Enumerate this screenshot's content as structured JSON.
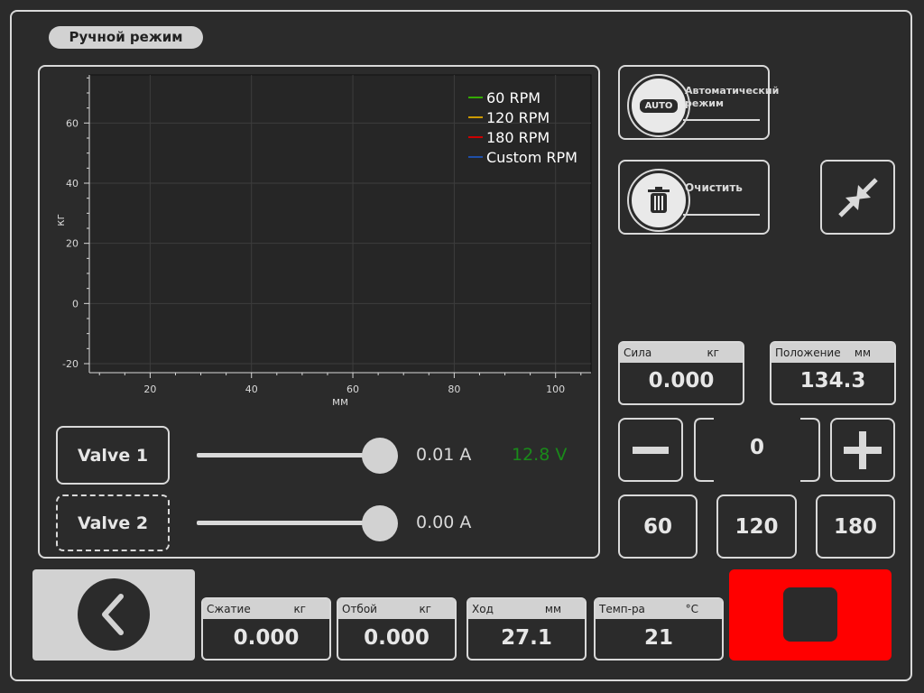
{
  "header": {
    "mode_label": "Ручной режим"
  },
  "chart_data": {
    "type": "line",
    "xlabel": "мм",
    "ylabel": "кг",
    "xlim": [
      8,
      107
    ],
    "ylim": [
      -23,
      76
    ],
    "x_ticks": [
      20,
      40,
      60,
      80,
      100
    ],
    "y_ticks": [
      -20,
      0,
      20,
      40,
      60
    ],
    "grid": true,
    "legend_position": "top-right",
    "series": [
      {
        "name": "60 RPM",
        "color": "#33aa00",
        "x": [],
        "y": []
      },
      {
        "name": "120 RPM",
        "color": "#cc9900",
        "x": [],
        "y": []
      },
      {
        "name": "180 RPM",
        "color": "#cc0000",
        "x": [],
        "y": []
      },
      {
        "name": "Custom RPM",
        "color": "#1f4fa8",
        "x": [],
        "y": []
      }
    ]
  },
  "valves": [
    {
      "label": "Valve 1",
      "level": 1.0,
      "current": "0.01 A",
      "voltage": "12.8 V"
    },
    {
      "label": "Valve 2",
      "level": 1.0,
      "current": "0.00 A"
    }
  ],
  "right": {
    "auto_button": {
      "line1": "Автоматический",
      "line2": "режим",
      "badge": "AUTO"
    },
    "clear_button": {
      "label": "Очистить"
    },
    "force": {
      "label": "Сила",
      "unit": "кг",
      "value": "0.000"
    },
    "position": {
      "label": "Положение",
      "unit": "мм",
      "value": "134.3"
    },
    "stepper_value": "0",
    "presets": [
      "60",
      "120",
      "180"
    ]
  },
  "bottom": {
    "compression": {
      "label": "Сжатие",
      "unit": "кг",
      "value": "0.000"
    },
    "rebound": {
      "label": "Отбой",
      "unit": "кг",
      "value": "0.000"
    },
    "stroke": {
      "label": "Ход",
      "unit": "мм",
      "value": "27.1"
    },
    "temperature": {
      "label": "Темп-ра",
      "unit": "°C",
      "value": "21"
    }
  },
  "colors": {
    "stop": "#ff0000",
    "back_panel": "#d2d2d2",
    "voltage_text": "#1a8a1a"
  }
}
